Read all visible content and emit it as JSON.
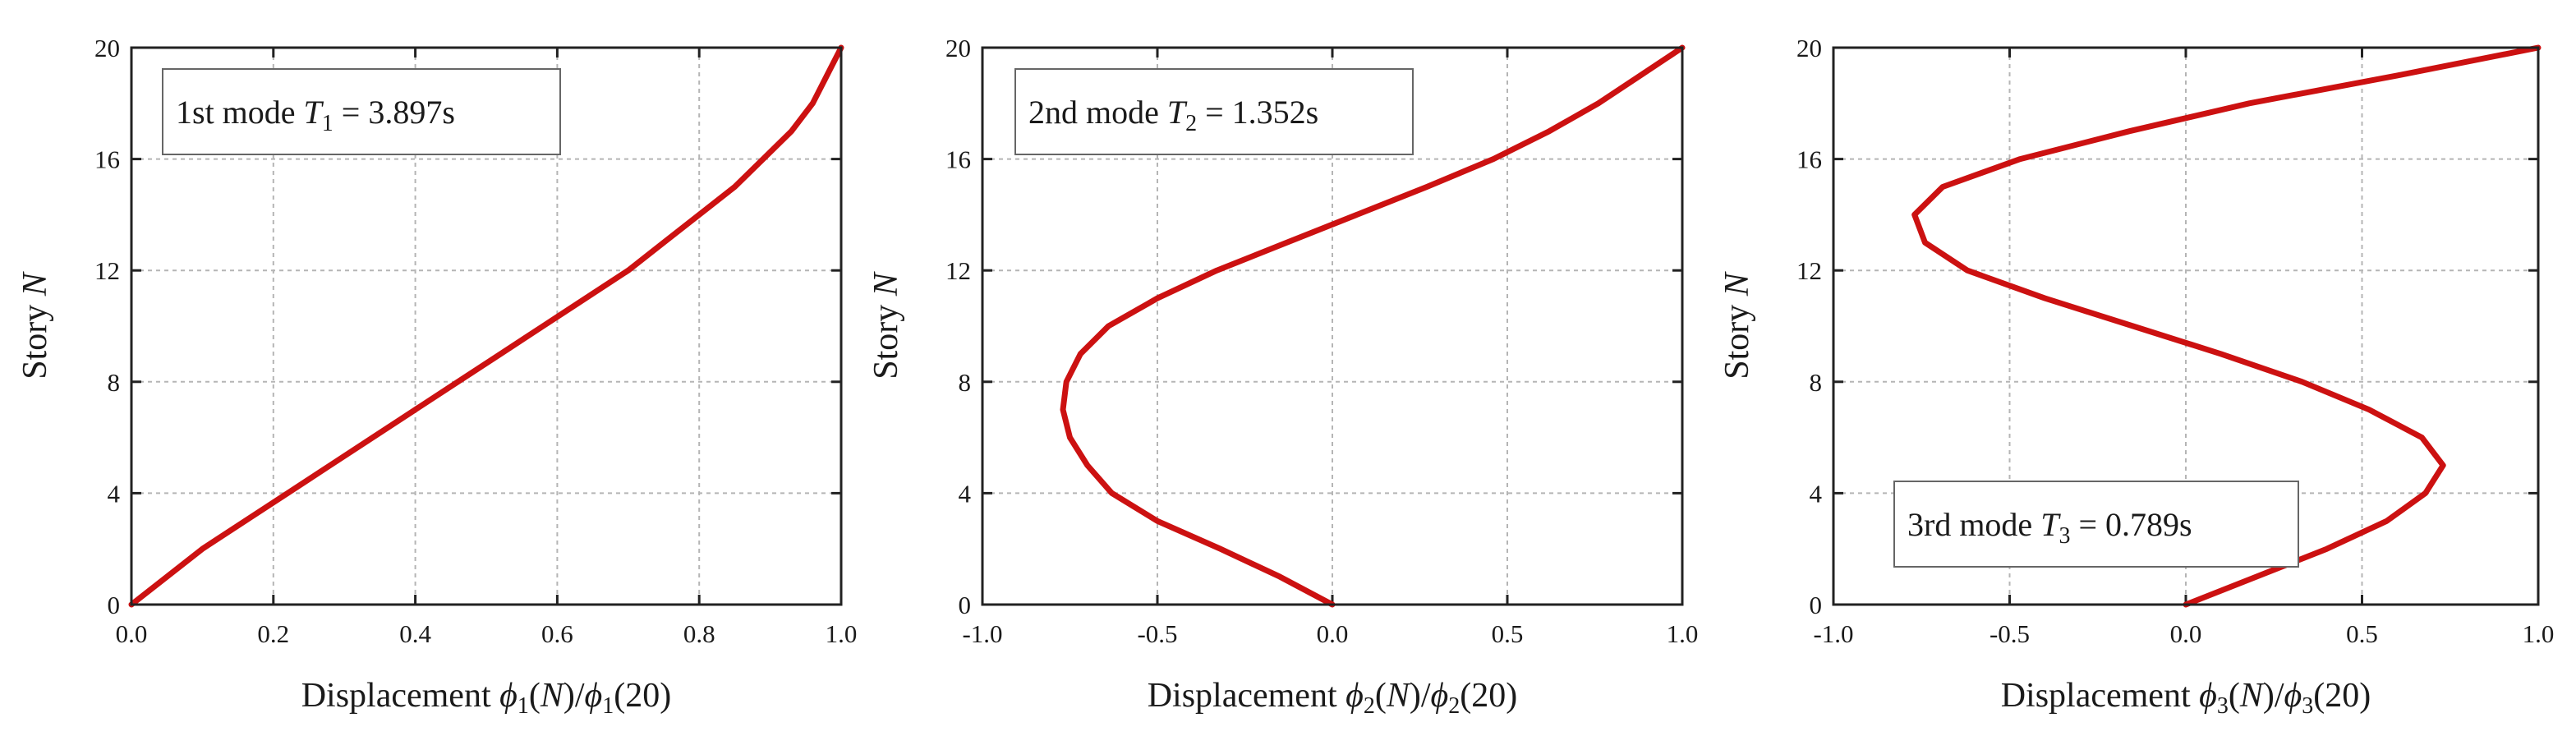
{
  "chart_data": [
    {
      "type": "line",
      "xlabel": {
        "prefix": "Displacement ",
        "phi": "ϕ",
        "sub": "1",
        "n_open": "(",
        "n": "N",
        "n_close": ")/",
        "phi2": "ϕ",
        "sub2": "1",
        "tail": "(20)"
      },
      "ylabel": {
        "text": "Story ",
        "var": "N"
      },
      "xlim": [
        0.0,
        1.0
      ],
      "ylim": [
        0,
        20
      ],
      "xticks": [
        0.0,
        0.2,
        0.4,
        0.6,
        0.8,
        1.0
      ],
      "xtick_labels": [
        "0.0",
        "0.2",
        "0.4",
        "0.6",
        "0.8",
        "1.0"
      ],
      "yticks": [
        0,
        4,
        8,
        12,
        16,
        20
      ],
      "ytick_labels": [
        "0",
        "4",
        "8",
        "12",
        "16",
        "20"
      ],
      "grid": true,
      "annotation": {
        "text": "1st mode  ",
        "var": "T",
        "sub": "1",
        "rest": " = 3.897s",
        "position": "top-left"
      },
      "color": "#cc1111",
      "series": [
        {
          "x": [
            0.0,
            0.05,
            0.1,
            0.16,
            0.22,
            0.28,
            0.34,
            0.4,
            0.46,
            0.52,
            0.58,
            0.64,
            0.7,
            0.75,
            0.8,
            0.85,
            0.89,
            0.93,
            0.96,
            0.98,
            1.0
          ],
          "y": [
            0,
            1,
            2,
            3,
            4,
            5,
            6,
            7,
            8,
            9,
            10,
            11,
            12,
            13,
            14,
            15,
            16,
            17,
            18,
            19,
            20
          ]
        }
      ]
    },
    {
      "type": "line",
      "xlabel": {
        "prefix": "Displacement ",
        "phi": "ϕ",
        "sub": "2",
        "n_open": "(",
        "n": "N",
        "n_close": ")/",
        "phi2": "ϕ",
        "sub2": "2",
        "tail": "(20)"
      },
      "ylabel": {
        "text": "Story ",
        "var": "N"
      },
      "xlim": [
        -1.0,
        1.0
      ],
      "ylim": [
        0,
        20
      ],
      "xticks": [
        -1.0,
        -0.5,
        0.0,
        0.5,
        1.0
      ],
      "xtick_labels": [
        "-1.0",
        "-0.5",
        "0.0",
        "0.5",
        "1.0"
      ],
      "yticks": [
        0,
        4,
        8,
        12,
        16,
        20
      ],
      "ytick_labels": [
        "0",
        "4",
        "8",
        "12",
        "16",
        "20"
      ],
      "grid": true,
      "annotation": {
        "text": "2nd mode  ",
        "var": "T",
        "sub": "2",
        "rest": " = 1.352s",
        "position": "top-left"
      },
      "color": "#cc1111",
      "series": [
        {
          "x": [
            0.0,
            -0.15,
            -0.32,
            -0.5,
            -0.63,
            -0.7,
            -0.75,
            -0.77,
            -0.76,
            -0.72,
            -0.64,
            -0.5,
            -0.33,
            -0.13,
            0.07,
            0.27,
            0.46,
            0.62,
            0.76,
            0.88,
            1.0
          ],
          "y": [
            0,
            1,
            2,
            3,
            4,
            5,
            6,
            7,
            8,
            9,
            10,
            11,
            12,
            13,
            14,
            15,
            16,
            17,
            18,
            19,
            20
          ]
        }
      ]
    },
    {
      "type": "line",
      "xlabel": {
        "prefix": "Displacement ",
        "phi": "ϕ",
        "sub": "3",
        "n_open": "(",
        "n": "N",
        "n_close": ")/",
        "phi2": "ϕ",
        "sub2": "3",
        "tail": "(20)"
      },
      "ylabel": {
        "text": "Story ",
        "var": "N"
      },
      "xlim": [
        -1.0,
        1.0
      ],
      "ylim": [
        0,
        20
      ],
      "xticks": [
        -1.0,
        -0.5,
        0.0,
        0.5,
        1.0
      ],
      "xtick_labels": [
        "-1.0",
        "-0.5",
        "0.0",
        "0.5",
        "1.0"
      ],
      "yticks": [
        0,
        4,
        8,
        12,
        16,
        20
      ],
      "ytick_labels": [
        "0",
        "4",
        "8",
        "12",
        "16",
        "20"
      ],
      "grid": true,
      "annotation": {
        "text": "3rd mode  ",
        "var": "T",
        "sub": "3",
        "rest": " = 0.789s",
        "position": "bottom-left"
      },
      "color": "#cc1111",
      "series": [
        {
          "x": [
            0.0,
            0.2,
            0.4,
            0.57,
            0.68,
            0.73,
            0.67,
            0.52,
            0.33,
            0.1,
            -0.15,
            -0.4,
            -0.62,
            -0.74,
            -0.77,
            -0.69,
            -0.47,
            -0.16,
            0.18,
            0.6,
            1.0
          ],
          "y": [
            0,
            1,
            2,
            3,
            4,
            5,
            6,
            7,
            8,
            9,
            10,
            11,
            12,
            13,
            14,
            15,
            16,
            17,
            18,
            19,
            20
          ]
        }
      ]
    }
  ]
}
